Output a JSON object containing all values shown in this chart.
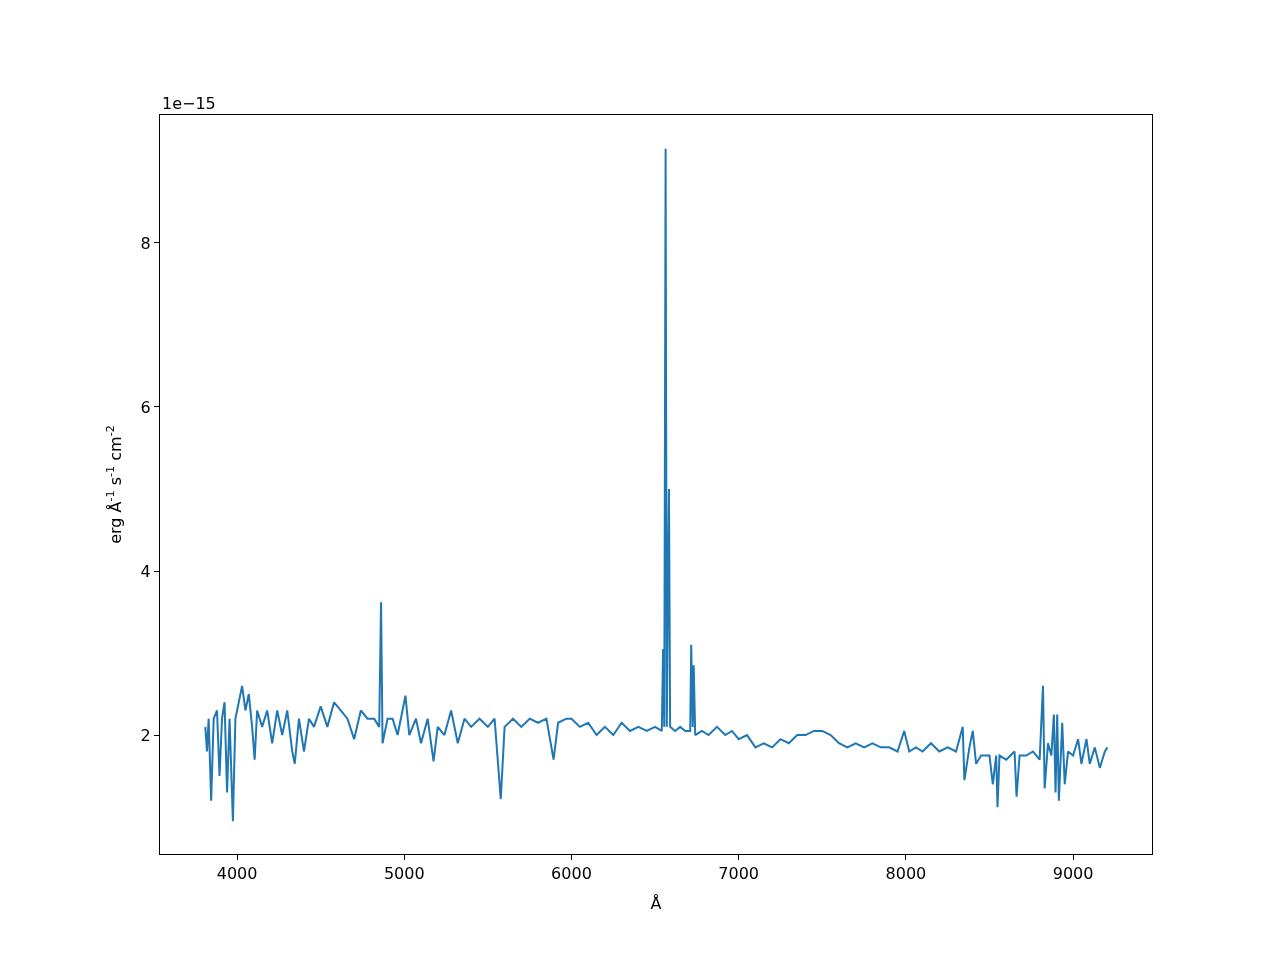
{
  "chart_data": {
    "type": "line",
    "xlabel": "Å",
    "ylabel": "erg Å$^{-1}$ s$^{-1}$ cm$^{-2}$",
    "annotations": [
      "1e−15"
    ],
    "xlim": [
      3539,
      9472
    ],
    "xticks": [
      4000,
      5000,
      6000,
      7000,
      8000,
      9000
    ],
    "ylim": [
      0.55,
      9.56
    ],
    "yticks": [
      2,
      4,
      6,
      8
    ],
    "marker": "none",
    "line_style": "solid",
    "series": [
      {
        "color": "#1f77b4",
        "x": [
          3810,
          3820,
          3830,
          3845,
          3860,
          3880,
          3895,
          3910,
          3925,
          3940,
          3955,
          3975,
          3990,
          4010,
          4030,
          4050,
          4070,
          4090,
          4105,
          4120,
          4150,
          4180,
          4210,
          4240,
          4270,
          4300,
          4330,
          4345,
          4370,
          4400,
          4430,
          4460,
          4500,
          4540,
          4580,
          4620,
          4660,
          4700,
          4740,
          4780,
          4820,
          4850,
          4861,
          4870,
          4900,
          4930,
          4960,
          5007,
          5030,
          5070,
          5100,
          5140,
          5175,
          5200,
          5240,
          5280,
          5320,
          5360,
          5400,
          5450,
          5500,
          5540,
          5577,
          5600,
          5650,
          5700,
          5750,
          5800,
          5850,
          5893,
          5920,
          5970,
          6000,
          6050,
          6100,
          6150,
          6200,
          6250,
          6300,
          6350,
          6400,
          6450,
          6500,
          6540,
          6548,
          6555,
          6563,
          6570,
          6578,
          6583,
          6590,
          6620,
          6650,
          6680,
          6710,
          6716,
          6725,
          6731,
          6740,
          6780,
          6820,
          6870,
          6920,
          6960,
          7000,
          7050,
          7100,
          7150,
          7200,
          7250,
          7300,
          7350,
          7400,
          7450,
          7500,
          7550,
          7600,
          7650,
          7700,
          7750,
          7800,
          7850,
          7900,
          7950,
          7990,
          8020,
          8060,
          8100,
          8150,
          8200,
          8250,
          8300,
          8340,
          8350,
          8380,
          8400,
          8420,
          8450,
          8500,
          8520,
          8540,
          8548,
          8560,
          8600,
          8650,
          8662,
          8680,
          8720,
          8760,
          8800,
          8820,
          8830,
          8850,
          8870,
          8885,
          8895,
          8905,
          8915,
          8935,
          8950,
          8970,
          9000,
          9030,
          9050,
          9080,
          9100,
          9130,
          9160,
          9190,
          9205
        ],
        "values": [
          2.1,
          1.8,
          2.2,
          1.2,
          2.2,
          2.3,
          1.5,
          2.2,
          2.4,
          1.3,
          2.2,
          0.95,
          2.2,
          2.4,
          2.6,
          2.3,
          2.5,
          2.1,
          1.7,
          2.3,
          2.1,
          2.3,
          1.9,
          2.3,
          2.0,
          2.3,
          1.8,
          1.65,
          2.2,
          1.8,
          2.2,
          2.1,
          2.35,
          2.1,
          2.4,
          2.3,
          2.2,
          1.95,
          2.3,
          2.2,
          2.2,
          2.1,
          3.62,
          1.9,
          2.2,
          2.2,
          2.0,
          2.48,
          2.0,
          2.2,
          1.9,
          2.2,
          1.68,
          2.1,
          2.0,
          2.3,
          1.9,
          2.2,
          2.1,
          2.2,
          2.1,
          2.2,
          1.22,
          2.1,
          2.2,
          2.1,
          2.2,
          2.15,
          2.2,
          1.7,
          2.15,
          2.2,
          2.2,
          2.1,
          2.15,
          2.0,
          2.1,
          2.0,
          2.15,
          2.05,
          2.1,
          2.05,
          2.1,
          2.05,
          3.05,
          2.1,
          9.15,
          2.1,
          4.1,
          5.0,
          2.1,
          2.05,
          2.1,
          2.05,
          2.05,
          3.1,
          2.1,
          2.85,
          2.0,
          2.05,
          2.0,
          2.1,
          2.0,
          2.05,
          1.95,
          2.0,
          1.85,
          1.9,
          1.85,
          1.95,
          1.9,
          2.0,
          2.0,
          2.05,
          2.05,
          2.0,
          1.9,
          1.85,
          1.9,
          1.85,
          1.9,
          1.85,
          1.85,
          1.8,
          2.05,
          1.8,
          1.85,
          1.8,
          1.9,
          1.8,
          1.85,
          1.8,
          2.1,
          1.45,
          1.85,
          2.05,
          1.65,
          1.75,
          1.75,
          1.4,
          1.75,
          1.12,
          1.75,
          1.7,
          1.8,
          1.25,
          1.75,
          1.75,
          1.8,
          1.7,
          2.6,
          1.35,
          1.9,
          1.75,
          2.25,
          1.3,
          2.25,
          1.2,
          2.15,
          1.4,
          1.8,
          1.75,
          1.95,
          1.65,
          1.95,
          1.65,
          1.85,
          1.6,
          1.8,
          1.85
        ]
      }
    ]
  }
}
